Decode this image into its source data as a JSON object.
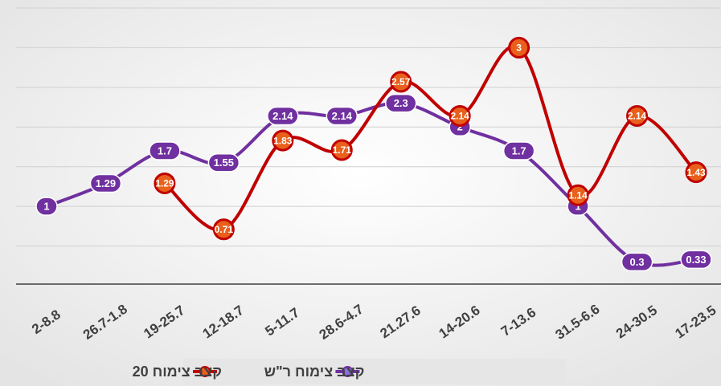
{
  "chart_data": {
    "type": "line",
    "categories": [
      "2-8.8",
      "26.7-1.8",
      "19-25.7",
      "12-18.7",
      "5-11.7",
      "28.6-4.7",
      "21.27.6",
      "14-20.6",
      "7-13.6",
      "31.5-6.6",
      "24-30.5",
      "17-23.5"
    ],
    "series": [
      {
        "name": "קצב צימוח ר\"ש",
        "color": "#7030a0",
        "values": [
          1,
          1.29,
          1.7,
          1.55,
          2.14,
          2.14,
          2.3,
          2,
          1.7,
          1,
          0.3,
          0.33
        ]
      },
      {
        "name": "קצב צימוח 20",
        "color": "#c00000",
        "values": [
          null,
          null,
          1.29,
          0.71,
          1.83,
          1.71,
          2.57,
          2.14,
          3,
          1.14,
          2.14,
          1.43
        ]
      }
    ],
    "ylim": [
      0,
      3.5
    ],
    "yticks": [
      0.5,
      1,
      1.5,
      2,
      2.5,
      3,
      3.5
    ],
    "grid": true,
    "smooth": true,
    "legend": "bottom"
  }
}
